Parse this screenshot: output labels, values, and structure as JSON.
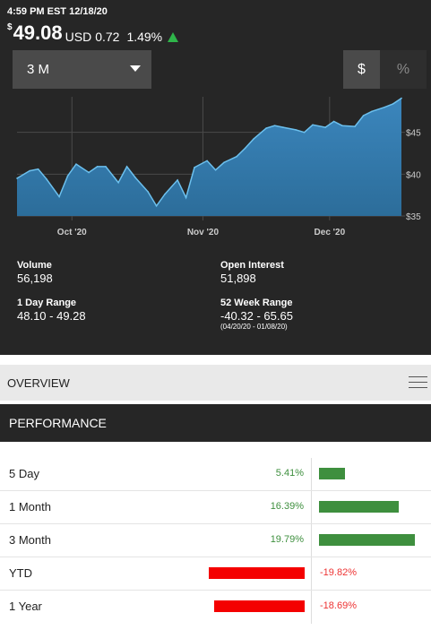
{
  "quote": {
    "timestamp": "4:59 PM EST 12/18/20",
    "currency_symbol": "$",
    "price": "49.08",
    "unit": "USD",
    "change": "0.72",
    "change_pct": "1.49%",
    "direction_icon": "triangle-up-icon"
  },
  "controls": {
    "range_value": "3 M",
    "unit_dollar": "$",
    "unit_percent": "%"
  },
  "chart_data": {
    "type": "area",
    "x": [
      "2020-09-18",
      "2020-09-21",
      "2020-09-23",
      "2020-09-25",
      "2020-09-28",
      "2020-09-30",
      "2020-10-02",
      "2020-10-05",
      "2020-10-07",
      "2020-10-09",
      "2020-10-12",
      "2020-10-14",
      "2020-10-16",
      "2020-10-19",
      "2020-10-21",
      "2020-10-23",
      "2020-10-26",
      "2020-10-28",
      "2020-10-30",
      "2020-11-02",
      "2020-11-04",
      "2020-11-06",
      "2020-11-09",
      "2020-11-11",
      "2020-11-13",
      "2020-11-16",
      "2020-11-18",
      "2020-11-20",
      "2020-11-23",
      "2020-11-25",
      "2020-11-27",
      "2020-11-30",
      "2020-12-02",
      "2020-12-04",
      "2020-12-07",
      "2020-12-09",
      "2020-12-11",
      "2020-12-14",
      "2020-12-16",
      "2020-12-18"
    ],
    "series": [
      {
        "values": [
          39.5,
          40.4,
          40.6,
          39.4,
          37.3,
          39.8,
          41.2,
          40.2,
          40.9,
          40.9,
          39.0,
          40.9,
          39.6,
          37.9,
          36.2,
          37.6,
          39.3,
          37.2,
          40.8,
          41.6,
          40.5,
          41.4,
          42.1,
          43.1,
          44.2,
          45.5,
          45.8,
          45.6,
          45.3,
          45.0,
          45.9,
          45.6,
          46.3,
          45.8,
          45.7,
          47.0,
          47.5,
          48.0,
          48.4,
          49.08
        ]
      }
    ],
    "x_ticks": [
      "Oct '20",
      "Nov '20",
      "Dec '20"
    ],
    "y_ticks": [
      "$35",
      "$40",
      "$45"
    ],
    "ylim": [
      35,
      50
    ],
    "grid": true,
    "colors": {
      "fill": "#2c6d9a",
      "line": "#6cc0ee",
      "grid": "#4a4a4a",
      "tick": "#cccccc"
    }
  },
  "stats": {
    "volume_label": "Volume",
    "volume_value": "56,198",
    "open_interest_label": "Open Interest",
    "open_interest_value": "51,898",
    "day_range_label": "1 Day Range",
    "day_range_value": "48.10 - 49.28",
    "week52_label": "52 Week Range",
    "week52_value": "-40.32 - 65.65",
    "week52_dates": "(04/20/20 - 01/08/20)"
  },
  "overview": {
    "title": "OVERVIEW",
    "menu_icon": "hamburger-menu-icon"
  },
  "performance": {
    "title": "PERFORMANCE",
    "rows": [
      {
        "label": "5 Day",
        "value": "5.41%",
        "pct": 5.41
      },
      {
        "label": "1 Month",
        "value": "16.39%",
        "pct": 16.39
      },
      {
        "label": "3 Month",
        "value": "19.79%",
        "pct": 19.79
      },
      {
        "label": "YTD",
        "value": "-19.82%",
        "pct": -19.82
      },
      {
        "label": "1 Year",
        "value": "-18.69%",
        "pct": -18.69
      }
    ],
    "colors": {
      "positive": "#3e8f3e",
      "negative": "#f40000"
    }
  }
}
